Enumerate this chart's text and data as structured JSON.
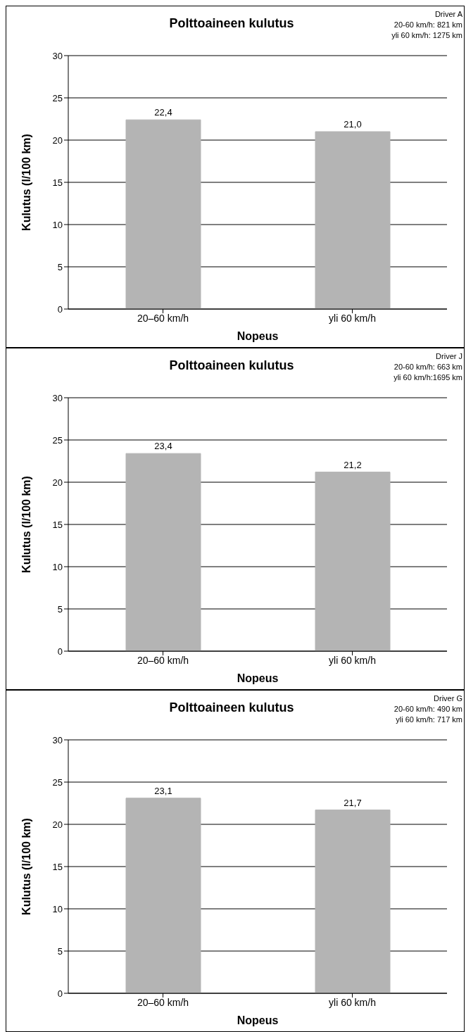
{
  "chart_data": [
    {
      "type": "bar",
      "title": "Polttoaineen kulutus",
      "xlabel": "Nopeus",
      "ylabel": "Kulutus (l/100 km)",
      "categories": [
        "20–60 km/h",
        "yli 60 km/h"
      ],
      "values": [
        22.4,
        21.0
      ],
      "color": "#b4b4b4",
      "ylim": [
        0,
        30
      ],
      "yticks": [
        0,
        5,
        10,
        15,
        20,
        25,
        30
      ],
      "grid": "y",
      "data_labels": true,
      "value_labels": [
        "22,4",
        "21,0"
      ],
      "annotations": [
        "Driver A",
        "20-60 km/h: 821 km",
        "yli 60 km/h: 1275 km"
      ]
    },
    {
      "type": "bar",
      "title": "Polttoaineen kulutus",
      "xlabel": "Nopeus",
      "ylabel": "Kulutus (l/100 km)",
      "categories": [
        "20–60 km/h",
        "yli 60 km/h"
      ],
      "values": [
        23.4,
        21.2
      ],
      "color": "#b4b4b4",
      "ylim": [
        0,
        30
      ],
      "yticks": [
        0,
        5,
        10,
        15,
        20,
        25,
        30
      ],
      "grid": "y",
      "data_labels": true,
      "value_labels": [
        "23,4",
        "21,2"
      ],
      "annotations": [
        "Driver J",
        "20-60 km/h: 663 km",
        "yli 60 km/h:1695 km"
      ]
    },
    {
      "type": "bar",
      "title": "Polttoaineen kulutus",
      "xlabel": "Nopeus",
      "ylabel": "Kulutus (l/100 km)",
      "categories": [
        "20–60 km/h",
        "yli 60 km/h"
      ],
      "values": [
        23.1,
        21.7
      ],
      "color": "#b4b4b4",
      "ylim": [
        0,
        30
      ],
      "yticks": [
        0,
        5,
        10,
        15,
        20,
        25,
        30
      ],
      "grid": "y",
      "data_labels": true,
      "value_labels": [
        "23,1",
        "21,7"
      ],
      "annotations": [
        "Driver G",
        "20-60 km/h: 490 km",
        "yli 60 km/h: 717 km"
      ]
    }
  ]
}
